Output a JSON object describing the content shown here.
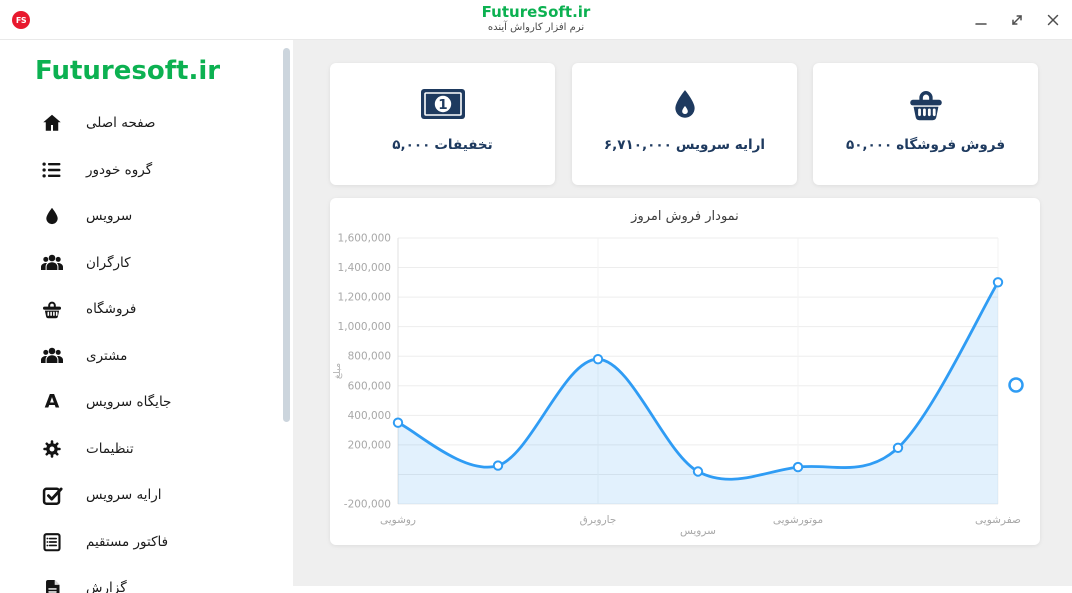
{
  "window": {
    "logo_text": "FS",
    "title": "FutureSoft.ir",
    "subtitle": "نرم افزار کارواش آینده",
    "controls": {
      "minimize": "minimize",
      "maximize": "maximize",
      "close": "close"
    }
  },
  "sidebar": {
    "brand": "Futuresoft.ir",
    "items": [
      {
        "label": "صفحه اصلی",
        "icon": "home"
      },
      {
        "label": "گروه خودور",
        "icon": "list"
      },
      {
        "label": "سرویس",
        "icon": "droplet"
      },
      {
        "label": "کارگران",
        "icon": "users"
      },
      {
        "label": "فروشگاه",
        "icon": "basket"
      },
      {
        "label": "مشتری",
        "icon": "users"
      },
      {
        "label": "جایگاه سرویس",
        "icon": "letter-a"
      },
      {
        "label": "تنظیمات",
        "icon": "gear"
      },
      {
        "label": "ارایه سرویس",
        "icon": "checkbox"
      },
      {
        "label": "فاکتور مستقیم",
        "icon": "invoice"
      },
      {
        "label": "گزارش",
        "icon": "report"
      }
    ]
  },
  "stats_cards": [
    {
      "icon": "banknote",
      "label": "تخفیفات",
      "value": "۵,۰۰۰"
    },
    {
      "icon": "droplet",
      "label": "ارایه سرویس",
      "value": "۶,۷۱۰,۰۰۰"
    },
    {
      "icon": "basket",
      "label": "فروش فروشگاه",
      "value": "۵۰,۰۰۰"
    }
  ],
  "chart_data": {
    "type": "line",
    "title": "نمودار فروش امروز",
    "ylabel": "مبلغ",
    "categories": [
      "روشویی",
      "",
      "جاروبرق",
      "سرویس",
      "موتورشویی",
      "",
      "صفرشویی"
    ],
    "values": [
      350000,
      60000,
      780000,
      20000,
      50000,
      180000,
      1300000
    ],
    "ylim": [
      -200000,
      1600000
    ],
    "ytick_step": 200000,
    "zero_label_hidden": true,
    "staggered_label_indices": [
      3
    ],
    "grid": true,
    "legend_position": "right-middle",
    "colors": {
      "line": "#2f9cf4",
      "area_rgba": "rgba(47,156,244,0.14)",
      "marker_fill": "#ffffff"
    }
  },
  "colors": {
    "brand_green": "#0cb151",
    "navy": "#1e3a5f",
    "logo_red": "#e8192e",
    "main_bg": "#efefef",
    "axis_text": "#a8a8a8"
  }
}
